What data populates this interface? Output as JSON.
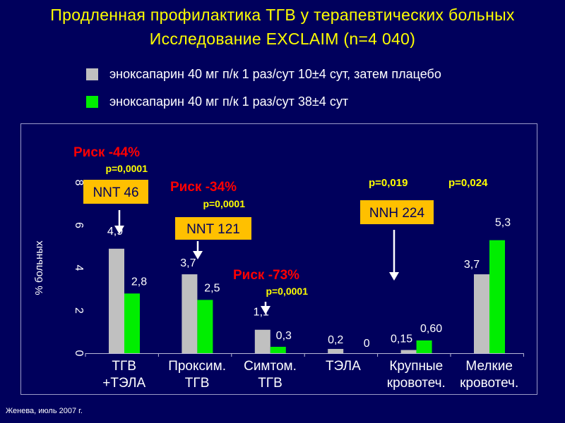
{
  "header": {
    "title_line1": "Продленная профилактика ТГВ у терапевтических больных",
    "title_line2": "Исследование EXCLAIM (n=4 040)"
  },
  "colors": {
    "background": "#00005c",
    "title": "#ffff00",
    "series_grey": "#c0c0c0",
    "series_green": "#00ee00",
    "callout_box": "#ffc000",
    "annotation_red": "#ff0000",
    "annotation_yellow": "#ffff00"
  },
  "footer": {
    "text": "Женева, июль 2007 г."
  },
  "chart_data": {
    "type": "bar",
    "ylabel": "% больных",
    "ylim": [
      0,
      8
    ],
    "yticks": [
      "0",
      "2",
      "4",
      "6",
      "8"
    ],
    "categories": [
      [
        "ТГВ",
        "+ТЭЛА"
      ],
      [
        "Проксим.",
        "ТГВ"
      ],
      [
        "Симтом.",
        "ТГВ"
      ],
      [
        "ТЭЛА"
      ],
      [
        "Крупные",
        "кровотеч."
      ],
      [
        "Мелкие",
        "кровотеч."
      ]
    ],
    "series": [
      {
        "name": "эноксапарин 40 мг п/к 1 раз/сут 10±4 сут, затем плацебо",
        "color": "#c0c0c0",
        "values": [
          4.9,
          3.7,
          1.1,
          0.2,
          0.15,
          3.7
        ],
        "labels": [
          "4,9",
          "3,7",
          "1,1",
          "0,2",
          "0,15",
          "3,7"
        ]
      },
      {
        "name": "эноксапарин 40 мг п/к 1 раз/сут 38±4 сут",
        "color": "#00ee00",
        "values": [
          2.8,
          2.5,
          0.3,
          0,
          0.6,
          5.3
        ],
        "labels": [
          "2,8",
          "2,5",
          "0,3",
          "0",
          "0,60",
          "5,3"
        ]
      }
    ],
    "annotations": {
      "risk1": "Риск -44%",
      "p1": "p=0,0001",
      "nnt1": "NNT 46",
      "risk2": "Риск -34%",
      "p2": "p=0,0001",
      "nnt2": "NNT 121",
      "risk3": "Риск -73%",
      "p3": "p=0,0001",
      "p4": "p=0,019",
      "nnh4": "NNH 224",
      "p5": "p=0,024"
    }
  }
}
